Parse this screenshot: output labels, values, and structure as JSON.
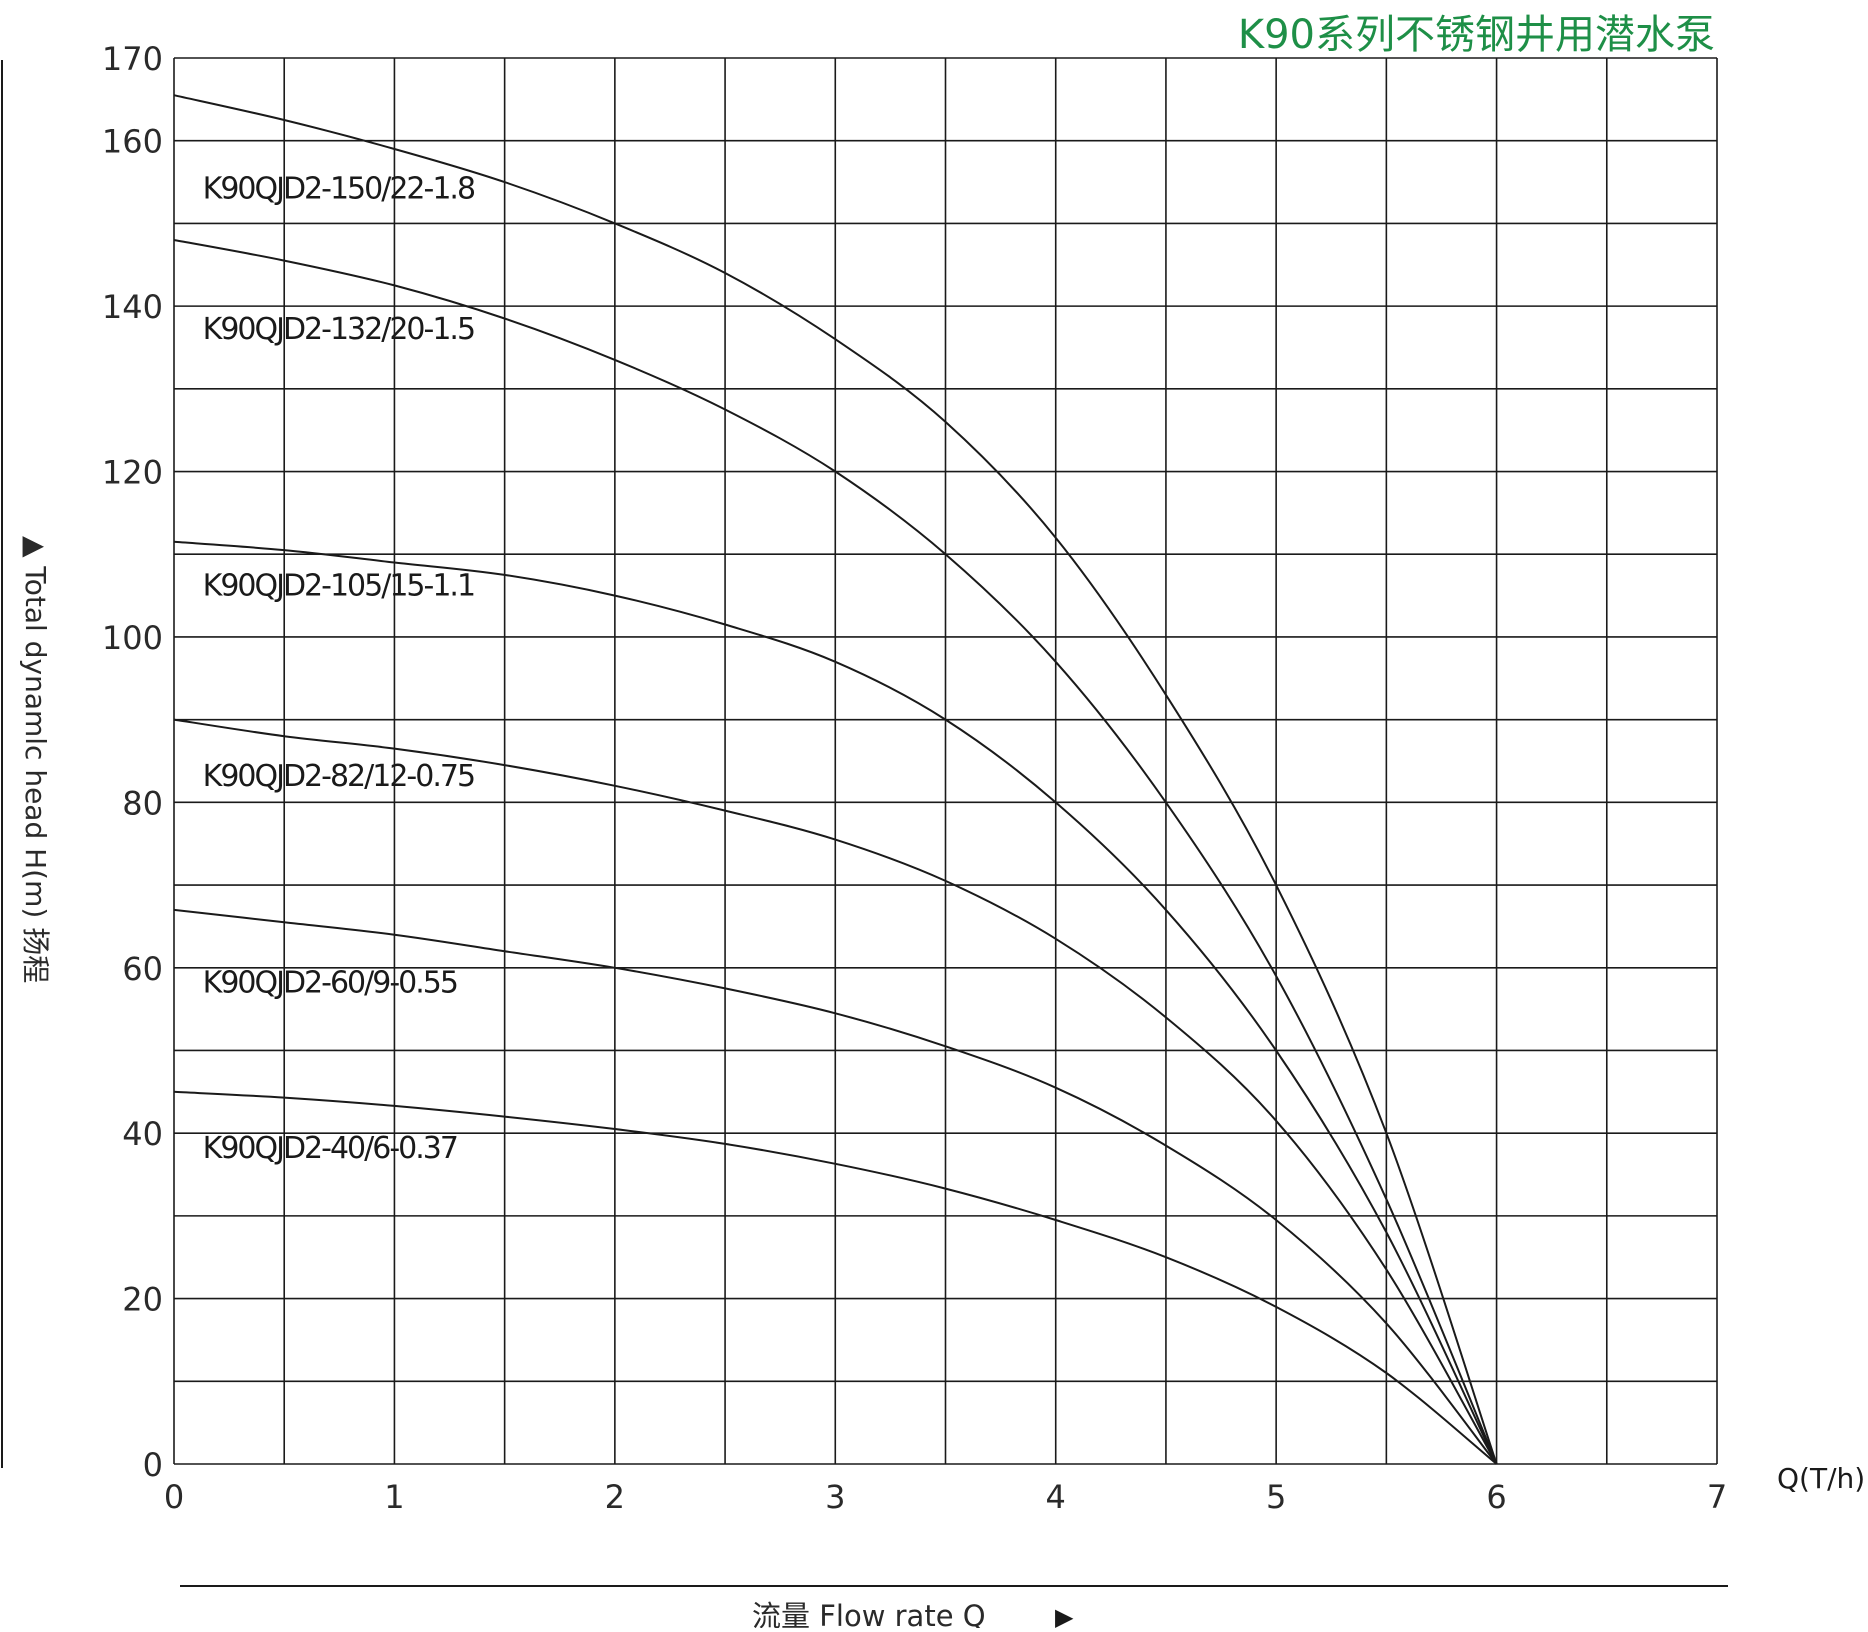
{
  "title": "K90系列不锈钢井用潜水泵",
  "colors": {
    "title": "#1e8f47",
    "grid": "#1a1a1a",
    "curve": "#1a1a1a",
    "text": "#2a2a2a"
  },
  "y_axis_label": "▲ Total dynamlc head H(m) 扬程",
  "x_axis_label": "流量  Flow rate Q",
  "x_axis_arrow": "▶",
  "x_unit_label": "Q(T/h)",
  "chart_data": {
    "type": "line",
    "title": "K90系列不锈钢井用潜水泵",
    "xlabel": "流量 Flow rate Q",
    "ylabel": "Total dynamlc head H(m) 扬程",
    "x_unit": "Q(T/h)",
    "xlim": [
      0,
      7
    ],
    "ylim": [
      0,
      170
    ],
    "x_ticks": [
      0,
      1,
      2,
      3,
      4,
      5,
      6,
      7
    ],
    "y_ticks": [
      0,
      20,
      40,
      60,
      80,
      100,
      120,
      140,
      160,
      170
    ],
    "x_minor_step": 0.5,
    "y_minor_step": 10,
    "grid": true,
    "legend": "inline labels at left",
    "series": [
      {
        "name": "K90QJD2-150/22-1.8",
        "label_y": 153,
        "points": [
          [
            0,
            165.5
          ],
          [
            0.5,
            162.5
          ],
          [
            1,
            159
          ],
          [
            1.5,
            155
          ],
          [
            2,
            150
          ],
          [
            2.5,
            144
          ],
          [
            3,
            136
          ],
          [
            3.5,
            126
          ],
          [
            4,
            112
          ],
          [
            4.5,
            93
          ],
          [
            5,
            70
          ],
          [
            5.5,
            40
          ],
          [
            6,
            0
          ]
        ]
      },
      {
        "name": "K90QJD2-132/20-1.5",
        "label_y": 136,
        "points": [
          [
            0,
            148
          ],
          [
            0.5,
            145.5
          ],
          [
            1,
            142.5
          ],
          [
            1.5,
            138.5
          ],
          [
            2,
            133.5
          ],
          [
            2.5,
            127.5
          ],
          [
            3,
            120
          ],
          [
            3.5,
            110
          ],
          [
            4,
            97
          ],
          [
            4.5,
            80
          ],
          [
            5,
            59
          ],
          [
            5.5,
            32
          ],
          [
            6,
            0
          ]
        ]
      },
      {
        "name": "K90QJD2-105/15-1.1",
        "label_y": 105,
        "points": [
          [
            0,
            111.5
          ],
          [
            0.5,
            110.5
          ],
          [
            1,
            109
          ],
          [
            1.5,
            107.5
          ],
          [
            2,
            105
          ],
          [
            2.5,
            101.5
          ],
          [
            3,
            97
          ],
          [
            3.5,
            90
          ],
          [
            4,
            80
          ],
          [
            4.5,
            67
          ],
          [
            5,
            50
          ],
          [
            5.5,
            28
          ],
          [
            6,
            0
          ]
        ]
      },
      {
        "name": "K90QJD2-82/12-0.75",
        "label_y": 82,
        "points": [
          [
            0,
            90
          ],
          [
            0.5,
            88
          ],
          [
            1,
            86.5
          ],
          [
            1.5,
            84.5
          ],
          [
            2,
            82
          ],
          [
            2.5,
            79
          ],
          [
            3,
            75.5
          ],
          [
            3.5,
            70.5
          ],
          [
            4,
            63.5
          ],
          [
            4.5,
            54
          ],
          [
            5,
            41.5
          ],
          [
            5.5,
            23.5
          ],
          [
            6,
            0
          ]
        ]
      },
      {
        "name": "K90QJD2-60/9-0.55",
        "label_y": 57,
        "points": [
          [
            0,
            67
          ],
          [
            0.5,
            65.5
          ],
          [
            1,
            64
          ],
          [
            1.5,
            62
          ],
          [
            2,
            60
          ],
          [
            2.5,
            57.5
          ],
          [
            3,
            54.5
          ],
          [
            3.5,
            50.5
          ],
          [
            4,
            45.5
          ],
          [
            4.5,
            38.5
          ],
          [
            5,
            29.5
          ],
          [
            5.5,
            17
          ],
          [
            6,
            0
          ]
        ]
      },
      {
        "name": "K90QJD2-40/6-0.37",
        "label_y": 37,
        "points": [
          [
            0,
            45
          ],
          [
            0.5,
            44.3
          ],
          [
            1,
            43.3
          ],
          [
            1.5,
            42
          ],
          [
            2,
            40.5
          ],
          [
            2.5,
            38.7
          ],
          [
            3,
            36.3
          ],
          [
            3.5,
            33.3
          ],
          [
            4,
            29.5
          ],
          [
            4.5,
            25
          ],
          [
            5,
            19
          ],
          [
            5.5,
            11
          ],
          [
            6,
            0
          ]
        ]
      }
    ]
  }
}
